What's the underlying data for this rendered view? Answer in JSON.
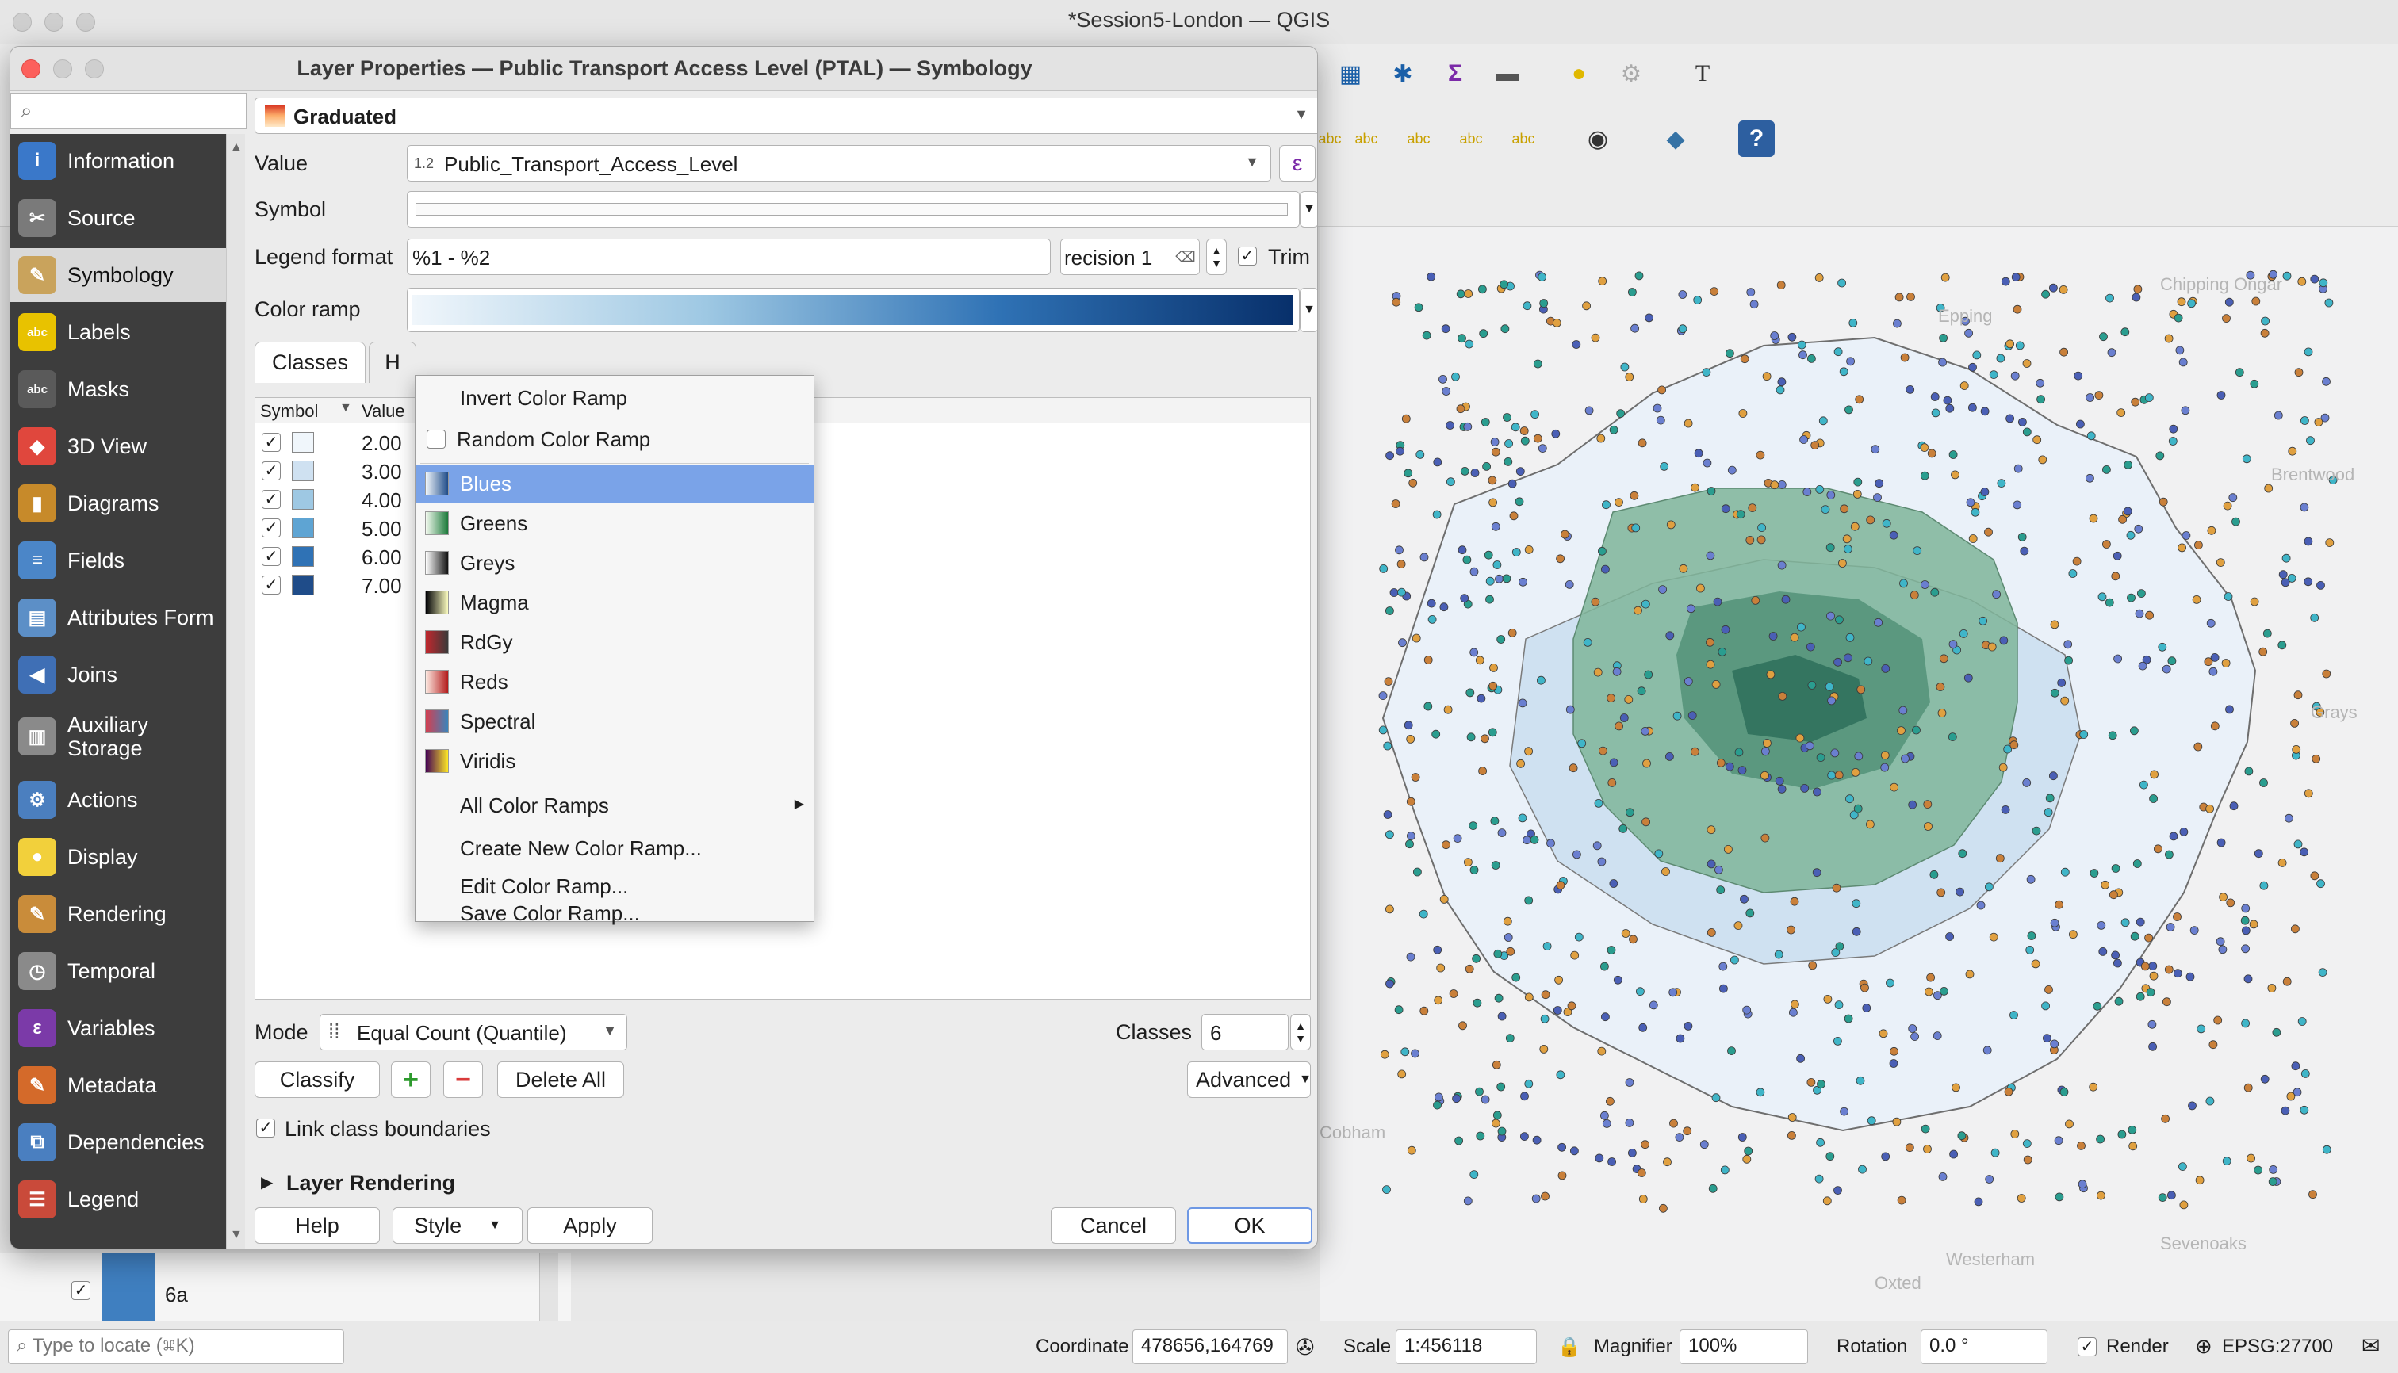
{
  "window": {
    "title": "*Session5-London — QGIS"
  },
  "dialog": {
    "title": "Layer Properties — Public Transport Access Level (PTAL) — Symbology",
    "renderer": "Graduated",
    "value_label": "Value",
    "value_type": "1.2",
    "value_field": "Public_Transport_Access_Level",
    "symbol_label": "Symbol",
    "legend_format_label": "Legend format",
    "legend_format_value": "%1 - %2",
    "precision_text": "recision 1",
    "trim_label": "Trim",
    "color_ramp_label": "Color ramp",
    "tabs": [
      "Classes",
      "H"
    ],
    "table_headers": {
      "symbol": "Symbol",
      "value": "Value"
    },
    "classes": [
      {
        "value": "2.00",
        "color": "#f0f6fb"
      },
      {
        "value": "3.00",
        "color": "#cfe1f1"
      },
      {
        "value": "4.00",
        "color": "#9ec8e3"
      },
      {
        "value": "5.00",
        "color": "#5ea4d3"
      },
      {
        "value": "6.00",
        "color": "#2f72b5"
      },
      {
        "value": "7.00",
        "color": "#1f4c89"
      }
    ],
    "mode_label": "Mode",
    "mode_value": "Equal Count (Quantile)",
    "classes_label": "Classes",
    "classes_count": "6",
    "classify_label": "Classify",
    "delete_all_label": "Delete All",
    "advanced_label": "Advanced",
    "link_boundaries_label": "Link class boundaries",
    "layer_rendering_label": "Layer Rendering",
    "help_label": "Help",
    "style_label": "Style",
    "apply_label": "Apply",
    "cancel_label": "Cancel",
    "ok_label": "OK"
  },
  "sidebar": {
    "search_placeholder": "",
    "items": [
      {
        "label": "Information",
        "icon": "info-icon",
        "color": "#3a78c9"
      },
      {
        "label": "Source",
        "icon": "wrench-icon",
        "color": "#7a7a7a"
      },
      {
        "label": "Symbology",
        "icon": "brush-icon",
        "color": "#c9a35c"
      },
      {
        "label": "Labels",
        "icon": "abc-label-icon",
        "color": "#e8c200"
      },
      {
        "label": "Masks",
        "icon": "abc-mask-icon",
        "color": "#5a5a5a"
      },
      {
        "label": "3D View",
        "icon": "cube-icon",
        "color": "#e0473d"
      },
      {
        "label": "Diagrams",
        "icon": "diagram-icon",
        "color": "#c78a2a"
      },
      {
        "label": "Fields",
        "icon": "fields-icon",
        "color": "#4b86c8"
      },
      {
        "label": "Attributes Form",
        "icon": "form-icon",
        "color": "#5c8fc7"
      },
      {
        "label": "Joins",
        "icon": "join-icon",
        "color": "#3f6fb5"
      },
      {
        "label": "Auxiliary Storage",
        "icon": "database-icon",
        "color": "#8a8a8a"
      },
      {
        "label": "Actions",
        "icon": "gear-icon",
        "color": "#4b7fbf"
      },
      {
        "label": "Display",
        "icon": "speech-icon",
        "color": "#f2d03b"
      },
      {
        "label": "Rendering",
        "icon": "paintbrush-icon",
        "color": "#c98c3a"
      },
      {
        "label": "Temporal",
        "icon": "clock-icon",
        "color": "#8a8a8a"
      },
      {
        "label": "Variables",
        "icon": "epsilon-icon",
        "color": "#7b3aa8"
      },
      {
        "label": "Metadata",
        "icon": "metadata-icon",
        "color": "#d46a2a"
      },
      {
        "label": "Dependencies",
        "icon": "dependency-icon",
        "color": "#4a7fc0"
      },
      {
        "label": "Legend",
        "icon": "legend-icon",
        "color": "#c94a3a"
      }
    ]
  },
  "ramp_menu": {
    "invert": "Invert Color Ramp",
    "random": "Random Color Ramp",
    "ramps": [
      {
        "label": "Blues",
        "from": "#f0f6fb",
        "to": "#1f4c89"
      },
      {
        "label": "Greens",
        "from": "#f3faef",
        "to": "#1b7a3a"
      },
      {
        "label": "Greys",
        "from": "#ffffff",
        "to": "#111111"
      },
      {
        "label": "Magma",
        "from": "#000004",
        "to": "#fbfcbf"
      },
      {
        "label": "RdGy",
        "from": "#c2272d",
        "to": "#3a3a3a"
      },
      {
        "label": "Reds",
        "from": "#fde9e1",
        "to": "#b31b1b"
      },
      {
        "label": "Spectral",
        "from": "#d53e4f",
        "to": "#3a84bb"
      },
      {
        "label": "Viridis",
        "from": "#440154",
        "to": "#fde725"
      }
    ],
    "all": "All Color Ramps",
    "create": "Create New Color Ramp...",
    "edit": "Edit Color Ramp...",
    "save": "Save Color Ramp..."
  },
  "map_labels": [
    "Chipping Ongar",
    "Epping",
    "Brentwood",
    "Grays",
    "Oxted",
    "Sevenoaks",
    "Westerham",
    "Cobham"
  ],
  "layers_panel": {
    "item": "6a"
  },
  "status": {
    "locate_placeholder": "Type to locate (⌘K)",
    "coordinate_label": "Coordinate",
    "coordinate_value": "478656,164769",
    "scale_label": "Scale",
    "scale_value": "1:456118",
    "magnifier_label": "Magnifier",
    "magnifier_value": "100%",
    "rotation_label": "Rotation",
    "rotation_value": "0.0 °",
    "render_label": "Render",
    "crs": "EPSG:27700"
  }
}
